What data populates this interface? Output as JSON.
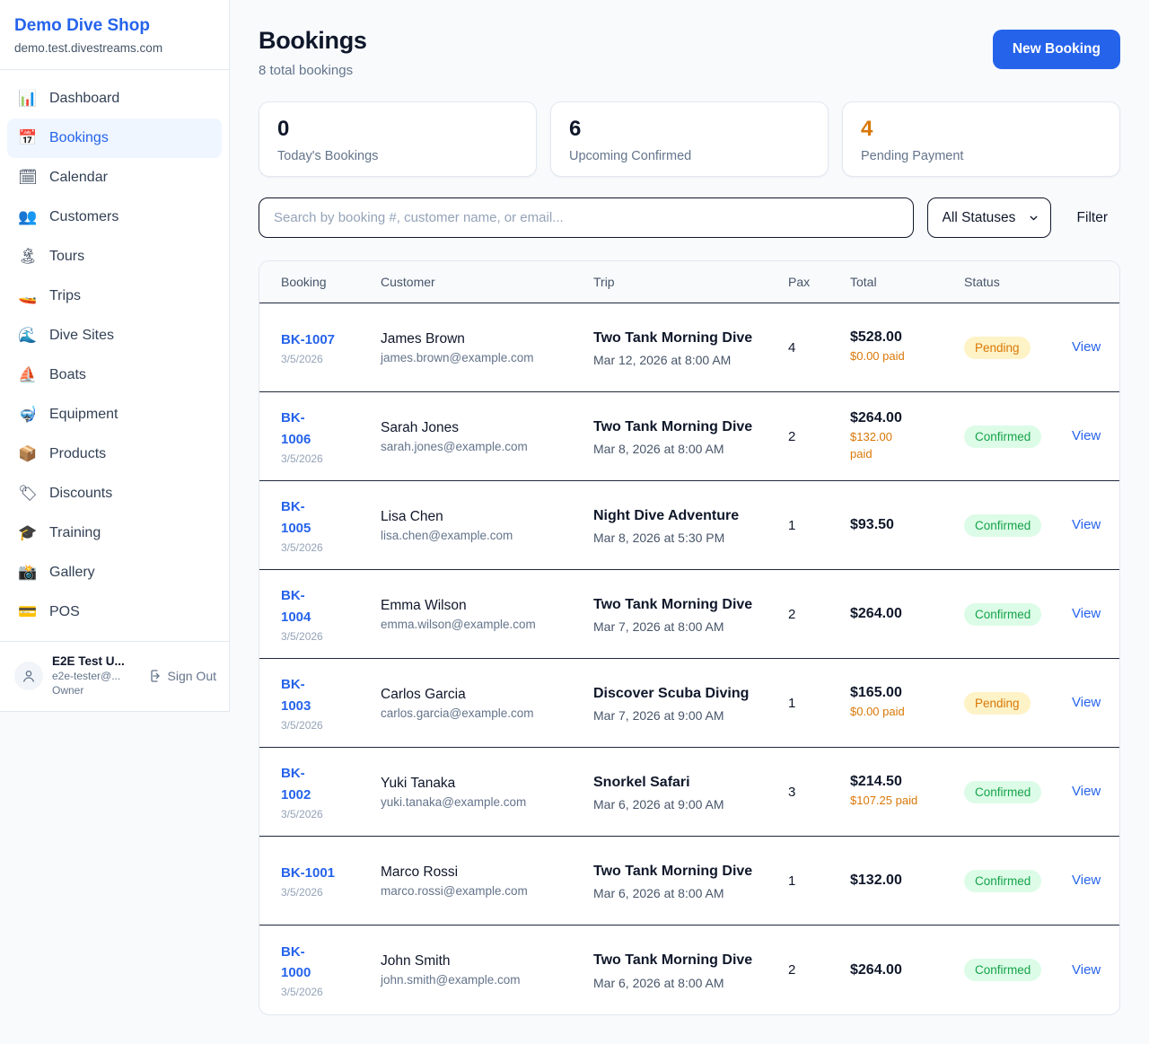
{
  "brand": {
    "name": "Demo Dive Shop",
    "domain": "demo.test.divestreams.com"
  },
  "sidebar": {
    "items": [
      {
        "key": "dashboard",
        "icon": "📊",
        "icon_name": "bar-chart-icon",
        "label": "Dashboard",
        "active": false
      },
      {
        "key": "bookings",
        "icon": "📅",
        "icon_name": "calendar-icon",
        "label": "Bookings",
        "active": true
      },
      {
        "key": "calendar",
        "icon": "🗓",
        "icon_name": "spiral-calendar-icon",
        "label": "Calendar",
        "active": false
      },
      {
        "key": "customers",
        "icon": "👥",
        "icon_name": "users-icon",
        "label": "Customers",
        "active": false
      },
      {
        "key": "tours",
        "icon": "🏝",
        "icon_name": "island-icon",
        "label": "Tours",
        "active": false
      },
      {
        "key": "trips",
        "icon": "🚤",
        "icon_name": "speedboat-icon",
        "label": "Trips",
        "active": false
      },
      {
        "key": "dive-sites",
        "icon": "🌊",
        "icon_name": "wave-icon",
        "label": "Dive Sites",
        "active": false
      },
      {
        "key": "boats",
        "icon": "⛵",
        "icon_name": "sailboat-icon",
        "label": "Boats",
        "active": false
      },
      {
        "key": "equipment",
        "icon": "🤿",
        "icon_name": "diving-mask-icon",
        "label": "Equipment",
        "active": false
      },
      {
        "key": "products",
        "icon": "📦",
        "icon_name": "package-icon",
        "label": "Products",
        "active": false
      },
      {
        "key": "discounts",
        "icon": "🏷",
        "icon_name": "tag-icon",
        "label": "Discounts",
        "active": false
      },
      {
        "key": "training",
        "icon": "🎓",
        "icon_name": "graduation-cap-icon",
        "label": "Training",
        "active": false
      },
      {
        "key": "gallery",
        "icon": "📸",
        "icon_name": "camera-icon",
        "label": "Gallery",
        "active": false
      },
      {
        "key": "pos",
        "icon": "💳",
        "icon_name": "credit-card-icon",
        "label": "POS",
        "active": false
      }
    ],
    "user": {
      "name": "E2E Test U...",
      "email": "e2e-tester@...",
      "role": "Owner",
      "sign_out_label": "Sign Out"
    }
  },
  "header": {
    "title": "Bookings",
    "subtitle": "8 total bookings",
    "new_booking_label": "New Booking"
  },
  "stats": [
    {
      "value": "0",
      "label": "Today's Bookings",
      "accent": false
    },
    {
      "value": "6",
      "label": "Upcoming Confirmed",
      "accent": false
    },
    {
      "value": "4",
      "label": "Pending Payment",
      "accent": true
    }
  ],
  "filters": {
    "search_placeholder": "Search by booking #, customer name, or email...",
    "status_selected": "All Statuses",
    "filter_label": "Filter"
  },
  "table": {
    "columns": [
      "Booking",
      "Customer",
      "Trip",
      "Pax",
      "Total",
      "Status",
      ""
    ],
    "view_label": "View",
    "rows": [
      {
        "booking_id": "BK-1007",
        "booked_date": "3/5/2026",
        "customer_name": "James Brown",
        "customer_email": "james.brown@example.com",
        "trip_name": "Two Tank Morning Dive",
        "trip_datetime": "Mar 12, 2026 at 8:00 AM",
        "pax": "4",
        "total": "$528.00",
        "paid": "$0.00 paid",
        "status": {
          "label": "Pending",
          "variant": "pending"
        }
      },
      {
        "booking_id": "BK-\n1006",
        "booked_date": "3/5/2026",
        "customer_name": "Sarah Jones",
        "customer_email": "sarah.jones@example.com",
        "trip_name": "Two Tank Morning Dive",
        "trip_datetime": "Mar 8, 2026 at 8:00 AM",
        "pax": "2",
        "total": "$264.00",
        "paid": "$132.00\npaid",
        "status": {
          "label": "Confirmed",
          "variant": "confirmed"
        }
      },
      {
        "booking_id": "BK-\n1005",
        "booked_date": "3/5/2026",
        "customer_name": "Lisa Chen",
        "customer_email": "lisa.chen@example.com",
        "trip_name": "Night Dive Adventure",
        "trip_datetime": "Mar 8, 2026 at 5:30 PM",
        "pax": "1",
        "total": "$93.50",
        "paid": null,
        "status": {
          "label": "Confirmed",
          "variant": "confirmed"
        }
      },
      {
        "booking_id": "BK-\n1004",
        "booked_date": "3/5/2026",
        "customer_name": "Emma Wilson",
        "customer_email": "emma.wilson@example.com",
        "trip_name": "Two Tank Morning Dive",
        "trip_datetime": "Mar 7, 2026 at 8:00 AM",
        "pax": "2",
        "total": "$264.00",
        "paid": null,
        "status": {
          "label": "Confirmed",
          "variant": "confirmed"
        }
      },
      {
        "booking_id": "BK-\n1003",
        "booked_date": "3/5/2026",
        "customer_name": "Carlos Garcia",
        "customer_email": "carlos.garcia@example.com",
        "trip_name": "Discover Scuba Diving",
        "trip_datetime": "Mar 7, 2026 at 9:00 AM",
        "pax": "1",
        "total": "$165.00",
        "paid": "$0.00 paid",
        "status": {
          "label": "Pending",
          "variant": "pending"
        }
      },
      {
        "booking_id": "BK-\n1002",
        "booked_date": "3/5/2026",
        "customer_name": "Yuki Tanaka",
        "customer_email": "yuki.tanaka@example.com",
        "trip_name": "Snorkel Safari",
        "trip_datetime": "Mar 6, 2026 at 9:00 AM",
        "pax": "3",
        "total": "$214.50",
        "paid": "$107.25 paid",
        "status": {
          "label": "Confirmed",
          "variant": "confirmed"
        }
      },
      {
        "booking_id": "BK-1001",
        "booked_date": "3/5/2026",
        "customer_name": "Marco Rossi",
        "customer_email": "marco.rossi@example.com",
        "trip_name": "Two Tank Morning Dive",
        "trip_datetime": "Mar 6, 2026 at 8:00 AM",
        "pax": "1",
        "total": "$132.00",
        "paid": null,
        "status": {
          "label": "Confirmed",
          "variant": "confirmed"
        }
      },
      {
        "booking_id": "BK-\n1000",
        "booked_date": "3/5/2026",
        "customer_name": "John Smith",
        "customer_email": "john.smith@example.com",
        "trip_name": "Two Tank Morning Dive",
        "trip_datetime": "Mar 6, 2026 at 8:00 AM",
        "pax": "2",
        "total": "$264.00",
        "paid": null,
        "status": {
          "label": "Confirmed",
          "variant": "confirmed"
        }
      }
    ]
  },
  "colors": {
    "accent_blue": "#2563eb",
    "accent_orange": "#d97706",
    "pending_bg": "#fef3c7",
    "confirmed_bg": "#dcfce7",
    "confirmed_text": "#16a34a",
    "page_bg": "#f8fafc"
  }
}
